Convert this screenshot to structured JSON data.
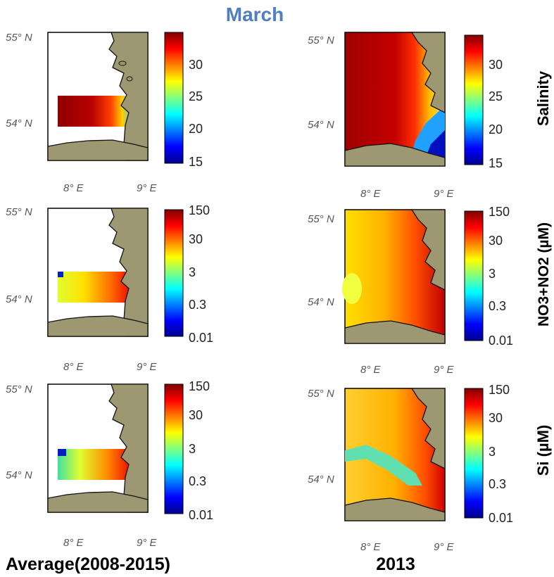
{
  "title": "March",
  "panels": {
    "lat_labels": [
      "55° N",
      "54° N"
    ],
    "lon_labels": [
      "8° E",
      "9° E"
    ]
  },
  "columns": {
    "left_label": "Average(2008-2015)",
    "right_label": "2013"
  },
  "rows": [
    {
      "variable_label": "Salinity",
      "colorbar_ticks": [
        "30",
        "25",
        "20",
        "15"
      ]
    },
    {
      "variable_label": "NO3+NO2 (µM)",
      "colorbar_ticks": [
        "150",
        "30",
        "3",
        "0.3",
        "0.01"
      ]
    },
    {
      "variable_label": "Si (µM)",
      "colorbar_ticks": [
        "150",
        "30",
        "3",
        "0.3",
        "0.01"
      ]
    }
  ],
  "colors": {
    "land": "#9d9872",
    "colormap": [
      "#00008f",
      "#0040ff",
      "#00c0ff",
      "#40ffbf",
      "#c0ff40",
      "#ffc000",
      "#ff4000",
      "#8f0000"
    ]
  }
}
